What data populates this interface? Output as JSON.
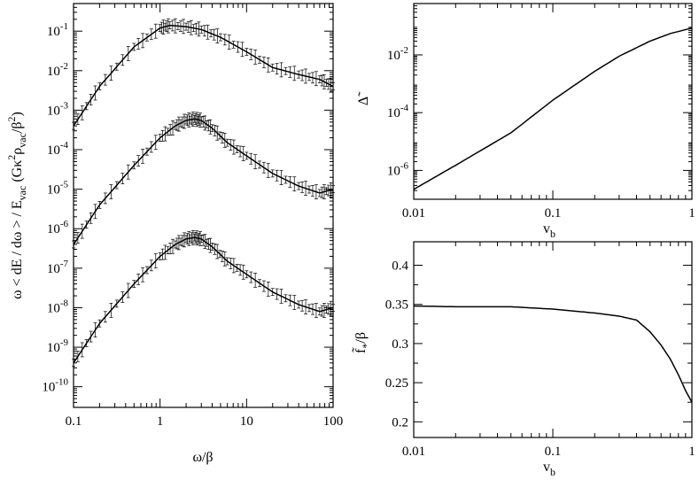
{
  "chart_data": [
    {
      "type": "line",
      "id": "spectrum",
      "xlabel": "ω/β",
      "ylabel": "ω < dE / dω > / E_vac (Gκ²ρ_vac/β²)",
      "xscale": "log",
      "yscale": "log",
      "xlim": [
        0.1,
        100
      ],
      "ylim": [
        3e-11,
        0.5
      ],
      "x_ticks": [
        {
          "v": 0.1,
          "label": "0.1"
        },
        {
          "v": 1,
          "label": "1"
        },
        {
          "v": 10,
          "label": "10"
        },
        {
          "v": 100,
          "label": "100"
        }
      ],
      "y_ticks": [
        {
          "v": 1e-10,
          "base": "10",
          "exp": "-10"
        },
        {
          "v": 1e-09,
          "base": "10",
          "exp": "-9"
        },
        {
          "v": 1e-08,
          "base": "10",
          "exp": "-8"
        },
        {
          "v": 1e-07,
          "base": "10",
          "exp": "-7"
        },
        {
          "v": 1e-06,
          "base": "10",
          "exp": "-6"
        },
        {
          "v": 1e-05,
          "base": "10",
          "exp": "-5"
        },
        {
          "v": 0.0001,
          "base": "10",
          "exp": "-4"
        },
        {
          "v": 0.001,
          "base": "10",
          "exp": "-3"
        },
        {
          "v": 0.01,
          "base": "10",
          "exp": "-2"
        },
        {
          "v": 0.1,
          "base": "10",
          "exp": "-1"
        }
      ],
      "error_bars": true,
      "series": [
        {
          "x": [
            0.1,
            0.2,
            0.5,
            1.0,
            1.3,
            2.0,
            3.0,
            5.0,
            10,
            20,
            40,
            70,
            100
          ],
          "y": [
            0.0004,
            0.004,
            0.04,
            0.12,
            0.14,
            0.13,
            0.11,
            0.07,
            0.03,
            0.012,
            0.008,
            0.006,
            0.004
          ]
        },
        {
          "x": [
            0.1,
            0.2,
            0.5,
            1.0,
            1.5,
            2.0,
            2.5,
            3.0,
            4.0,
            6.0,
            10,
            20,
            40,
            70,
            100
          ],
          "y": [
            4e-07,
            4e-06,
            4e-05,
            0.0002,
            0.0004,
            0.00055,
            0.0006,
            0.00055,
            0.00035,
            0.00015,
            7e-05,
            2.5e-05,
            1.2e-05,
            8e-06,
            1e-05
          ]
        },
        {
          "x": [
            0.1,
            0.2,
            0.5,
            1.0,
            1.5,
            2.0,
            2.5,
            3.0,
            4.0,
            6.0,
            10,
            20,
            40,
            70,
            100
          ],
          "y": [
            4e-10,
            4e-09,
            4e-08,
            2e-07,
            4e-07,
            5.5e-07,
            6e-07,
            5.5e-07,
            3.5e-07,
            1.5e-07,
            7e-08,
            2.5e-08,
            1.2e-08,
            8e-09,
            1e-08
          ]
        }
      ]
    },
    {
      "type": "line",
      "id": "delta",
      "xlabel": "v_b",
      "ylabel": "Δ̃",
      "xscale": "log",
      "yscale": "log",
      "xlim": [
        0.01,
        1
      ],
      "ylim": [
        1e-07,
        0.6
      ],
      "x_ticks": [
        {
          "v": 0.01,
          "label": "0.01"
        },
        {
          "v": 0.1,
          "label": "0.1"
        },
        {
          "v": 1,
          "label": "1"
        }
      ],
      "y_ticks": [
        {
          "v": 1e-06,
          "base": "10",
          "exp": "-6"
        },
        {
          "v": 0.0001,
          "base": "10",
          "exp": "-4"
        },
        {
          "v": 0.01,
          "base": "10",
          "exp": "-2"
        }
      ],
      "series": [
        {
          "x": [
            0.01,
            0.02,
            0.05,
            0.1,
            0.2,
            0.3,
            0.5,
            0.7,
            1.0
          ],
          "y": [
            2.2e-07,
            1.5e-06,
            2e-05,
            0.00027,
            0.0027,
            0.009,
            0.03,
            0.055,
            0.085
          ]
        }
      ]
    },
    {
      "type": "line",
      "id": "fstar",
      "xlabel": "v_b",
      "ylabel": "f̃*/β",
      "xscale": "log",
      "yscale": "linear",
      "xlim": [
        0.01,
        1
      ],
      "ylim": [
        0.18,
        0.43
      ],
      "x_ticks": [
        {
          "v": 0.01,
          "label": "0.01"
        },
        {
          "v": 0.1,
          "label": "0.1"
        },
        {
          "v": 1,
          "label": "1"
        }
      ],
      "y_ticks": [
        {
          "v": 0.2,
          "label": "0.2"
        },
        {
          "v": 0.25,
          "label": "0.25"
        },
        {
          "v": 0.3,
          "label": "0.3"
        },
        {
          "v": 0.35,
          "label": "0.35"
        },
        {
          "v": 0.4,
          "label": "0.4"
        }
      ],
      "series": [
        {
          "x": [
            0.01,
            0.02,
            0.05,
            0.1,
            0.2,
            0.3,
            0.4,
            0.5,
            0.6,
            0.7,
            0.8,
            0.9,
            1.0
          ],
          "y": [
            0.348,
            0.347,
            0.347,
            0.344,
            0.339,
            0.335,
            0.33,
            0.315,
            0.298,
            0.28,
            0.26,
            0.24,
            0.225
          ]
        }
      ]
    }
  ]
}
